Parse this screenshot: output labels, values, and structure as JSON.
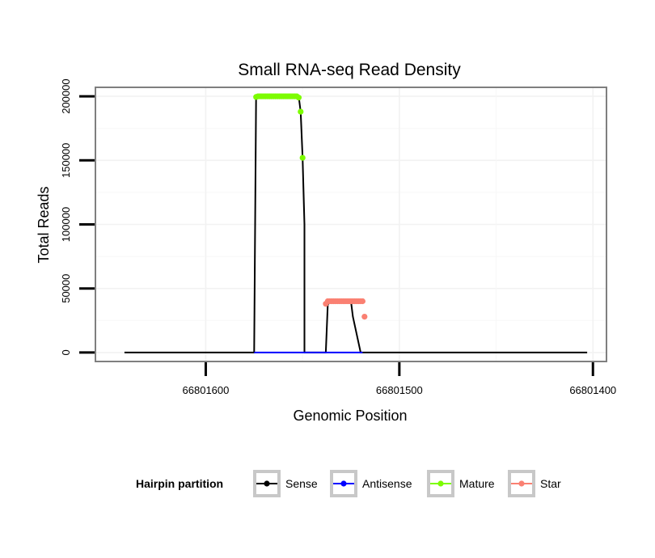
{
  "chart_data": {
    "type": "line",
    "title": "Small RNA-seq Read Density",
    "xlabel": "Genomic Position",
    "ylabel": "Total Reads",
    "xlim": [
      66801657,
      66801393
    ],
    "x_reversed": true,
    "ylim": [
      -7000,
      207000
    ],
    "xticks": [
      66801600,
      66801500,
      66801400
    ],
    "xtick_labels": [
      "66801600",
      "66801500",
      "66801400"
    ],
    "yticks": [
      0,
      50000,
      100000,
      150000,
      200000
    ],
    "ytick_labels": [
      "0",
      "50000",
      "100000",
      "150000",
      "200000"
    ],
    "grid": true,
    "legend": {
      "title": "Hairpin partition",
      "position": "bottom",
      "entries": [
        {
          "name": "Sense",
          "color": "#000000"
        },
        {
          "name": "Antisense",
          "color": "#0000ff"
        },
        {
          "name": "Mature",
          "color": "#7cfc00"
        },
        {
          "name": "Star",
          "color": "#fa8072"
        }
      ]
    },
    "series": [
      {
        "name": "Sense",
        "color": "#000000",
        "style": "line",
        "x": [
          66801642,
          66801575,
          66801574,
          66801553,
          66801552,
          66801551,
          66801550,
          66801549,
          66801549,
          66801538,
          66801537,
          66801536,
          66801526,
          66801525,
          66801524,
          66801520,
          66801519,
          66801518,
          66801517,
          66801403
        ],
        "y": [
          0,
          0,
          200000,
          200000,
          200000,
          188000,
          152000,
          100000,
          0,
          0,
          37000,
          40000,
          40000,
          40000,
          28000,
          0,
          0,
          0,
          0,
          0
        ]
      },
      {
        "name": "Antisense",
        "color": "#0000ff",
        "style": "line",
        "x": [
          66801575,
          66801519
        ],
        "y": [
          0,
          0
        ]
      },
      {
        "name": "Mature",
        "color": "#7cfc00",
        "style": "points",
        "x": [
          66801574,
          66801573,
          66801572,
          66801571,
          66801570,
          66801569,
          66801568,
          66801567,
          66801566,
          66801565,
          66801564,
          66801563,
          66801562,
          66801561,
          66801560,
          66801559,
          66801558,
          66801557,
          66801556,
          66801555,
          66801554,
          66801553,
          66801552,
          66801551,
          66801550
        ],
        "y": [
          199500,
          200000,
          200000,
          200000,
          200000,
          200000,
          200000,
          200000,
          200000,
          200000,
          200000,
          200000,
          200000,
          200000,
          200000,
          200000,
          200000,
          200000,
          200000,
          200000,
          200000,
          200000,
          199000,
          188000,
          152000
        ]
      },
      {
        "name": "Star",
        "color": "#fa8072",
        "style": "points",
        "x": [
          66801538,
          66801537,
          66801536,
          66801535,
          66801534,
          66801533,
          66801532,
          66801531,
          66801530,
          66801529,
          66801528,
          66801527,
          66801526,
          66801525,
          66801524,
          66801523,
          66801522,
          66801521,
          66801520,
          66801519,
          66801518
        ],
        "y": [
          38000,
          40000,
          40000,
          40000,
          40000,
          40000,
          40000,
          40000,
          40000,
          40000,
          40000,
          40000,
          40000,
          40000,
          40000,
          40000,
          40000,
          40000,
          40000,
          40000,
          28000
        ]
      }
    ]
  }
}
